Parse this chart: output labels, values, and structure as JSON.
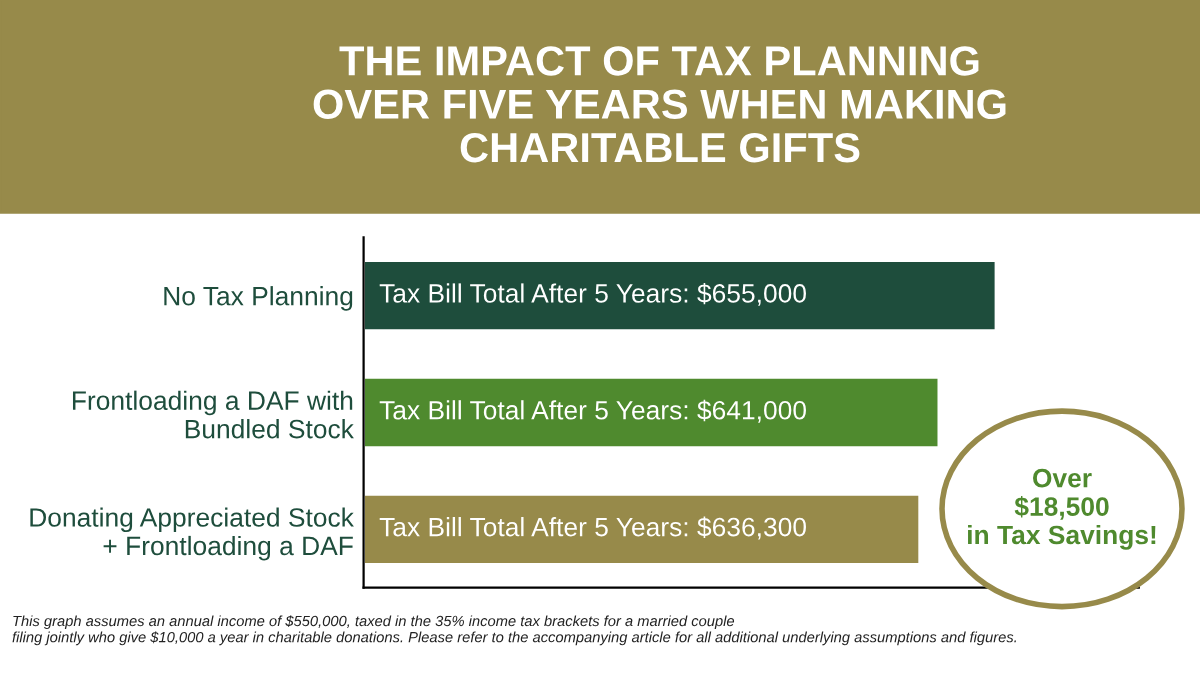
{
  "chart_data": {
    "type": "bar",
    "orientation": "horizontal",
    "title": "THE IMPACT OF TAX PLANNING\nOVER FIVE YEARS WHEN MAKING\nCHARITABLE GIFTS",
    "categories": [
      "No Tax Planning",
      "Frontloading a DAF with\nBundled Stock",
      "Donating Appreciated Stock\n+ Frontloading a DAF"
    ],
    "values": [
      655000,
      641000,
      636300
    ],
    "colors": [
      "#1e4d3c",
      "#4f8a2e",
      "#978a4a"
    ],
    "value_labels": [
      "Tax Bill Total After 5 Years: $655,000",
      "Tax Bill Total After 5 Years: $641,000",
      "Tax Bill Total After 5 Years: $636,300"
    ],
    "xlim": [
      500000,
      690000
    ],
    "tick_labels": "y",
    "grid": false,
    "legend": false,
    "annotations": [
      "Over\n$18,500\nin Tax Savings!",
      "This graph assumes an annual income of $550,000, taxed in the 35% income tax brackets for a married couple\nfiling jointly who give $10,000 a year in charitable donations. Please refer to the accompanying article for all additional underlying assumptions and figures."
    ]
  }
}
